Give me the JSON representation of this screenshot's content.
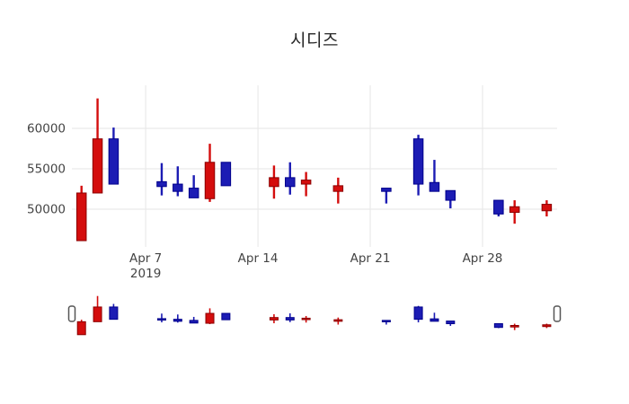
{
  "title": "시디즈",
  "colors": {
    "up_fill": "#d40d0d",
    "up_line": "#8b0000",
    "down_fill": "#1c1cb4",
    "down_line": "#00008b",
    "grid": "#e6e6e6",
    "tick_text": "#444444",
    "title_text": "#262626",
    "handle_fill": "#ffffff",
    "handle_border": "#555555"
  },
  "chart_data": {
    "type": "candlestick",
    "title": "시디즈",
    "xlabel": "",
    "ylabel": "",
    "ylim": [
      45330,
      65330
    ],
    "xlim_days": [
      -0.6,
      29.65
    ],
    "grid": true,
    "y_ticks": [
      {
        "value": 50000,
        "label": "50000"
      },
      {
        "value": 55000,
        "label": "55000"
      },
      {
        "value": 60000,
        "label": "60000"
      }
    ],
    "x_ticks": [
      {
        "day": 4,
        "label": "Apr 7",
        "sublabel": "2019"
      },
      {
        "day": 11,
        "label": "Apr 14",
        "sublabel": ""
      },
      {
        "day": 18,
        "label": "Apr 21",
        "sublabel": ""
      },
      {
        "day": 25,
        "label": "Apr 28",
        "sublabel": ""
      }
    ],
    "candles": [
      {
        "date": "2019-04-03",
        "day": 0,
        "open": 46100,
        "high": 52900,
        "low": 46100,
        "close": 52000
      },
      {
        "date": "2019-04-04",
        "day": 1,
        "open": 52000,
        "high": 63700,
        "low": 52000,
        "close": 58700
      },
      {
        "date": "2019-04-05",
        "day": 2,
        "open": 58700,
        "high": 60100,
        "low": 53100,
        "close": 53100
      },
      {
        "date": "2019-04-08",
        "day": 5,
        "open": 53400,
        "high": 55700,
        "low": 51700,
        "close": 52800
      },
      {
        "date": "2019-04-09",
        "day": 6,
        "open": 53100,
        "high": 55300,
        "low": 51600,
        "close": 52200
      },
      {
        "date": "2019-04-10",
        "day": 7,
        "open": 52600,
        "high": 54200,
        "low": 51400,
        "close": 51400
      },
      {
        "date": "2019-04-11",
        "day": 8,
        "open": 51300,
        "high": 58100,
        "low": 50900,
        "close": 55800
      },
      {
        "date": "2019-04-12",
        "day": 9,
        "open": 55800,
        "high": 55800,
        "low": 52900,
        "close": 52900
      },
      {
        "date": "2019-04-15",
        "day": 12,
        "open": 52800,
        "high": 55400,
        "low": 51300,
        "close": 53900
      },
      {
        "date": "2019-04-16",
        "day": 13,
        "open": 53900,
        "high": 55800,
        "low": 51800,
        "close": 52800
      },
      {
        "date": "2019-04-17",
        "day": 14,
        "open": 53100,
        "high": 54600,
        "low": 51600,
        "close": 53600
      },
      {
        "date": "2019-04-19",
        "day": 16,
        "open": 52200,
        "high": 53900,
        "low": 50700,
        "close": 52900
      },
      {
        "date": "2019-04-22",
        "day": 19,
        "open": 52600,
        "high": 52600,
        "low": 50700,
        "close": 52200
      },
      {
        "date": "2019-04-24",
        "day": 21,
        "open": 58700,
        "high": 59200,
        "low": 51700,
        "close": 53100
      },
      {
        "date": "2019-04-25",
        "day": 22,
        "open": 53300,
        "high": 56100,
        "low": 52200,
        "close": 52200
      },
      {
        "date": "2019-04-26",
        "day": 23,
        "open": 52300,
        "high": 52300,
        "low": 50100,
        "close": 51100
      },
      {
        "date": "2019-04-29",
        "day": 26,
        "open": 51100,
        "high": 51100,
        "low": 49100,
        "close": 49400
      },
      {
        "date": "2019-04-30",
        "day": 27,
        "open": 49600,
        "high": 51100,
        "low": 48200,
        "close": 50300
      },
      {
        "date": "2019-05-02",
        "day": 29,
        "open": 49800,
        "high": 51100,
        "low": 49100,
        "close": 50600
      }
    ],
    "rangeslider": {
      "visible": true,
      "ylim": [
        45600,
        64400
      ]
    }
  }
}
